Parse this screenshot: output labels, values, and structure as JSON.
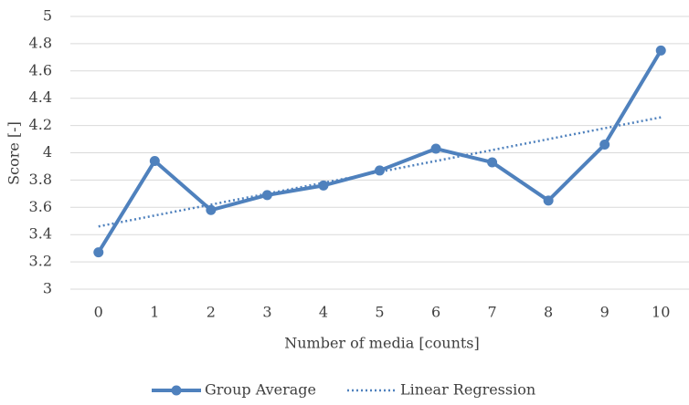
{
  "chart_data": {
    "type": "line",
    "x_label": "Number of media [counts]",
    "y_label": "Score [-]",
    "categories": [
      "0",
      "1",
      "2",
      "3",
      "4",
      "5",
      "6",
      "7",
      "8",
      "9",
      "10"
    ],
    "series": [
      {
        "name": "Group Average",
        "color": "#4f81bd",
        "style": "solid",
        "markers": true,
        "values": [
          3.27,
          3.94,
          3.58,
          3.69,
          3.76,
          3.87,
          4.03,
          3.93,
          3.65,
          4.06,
          4.75
        ]
      },
      {
        "name": "Linear Regression",
        "color": "#4f81bd",
        "style": "dotted",
        "markers": false,
        "values": [
          3.46,
          3.54,
          3.62,
          3.7,
          3.78,
          3.86,
          3.94,
          4.02,
          4.1,
          4.18,
          4.26
        ]
      }
    ],
    "ylim": [
      3,
      5
    ],
    "yticks": [
      3,
      3.2,
      3.4,
      3.6,
      3.8,
      4,
      4.2,
      4.4,
      4.6,
      4.8,
      5
    ],
    "grid": true,
    "legend": "bottom"
  }
}
